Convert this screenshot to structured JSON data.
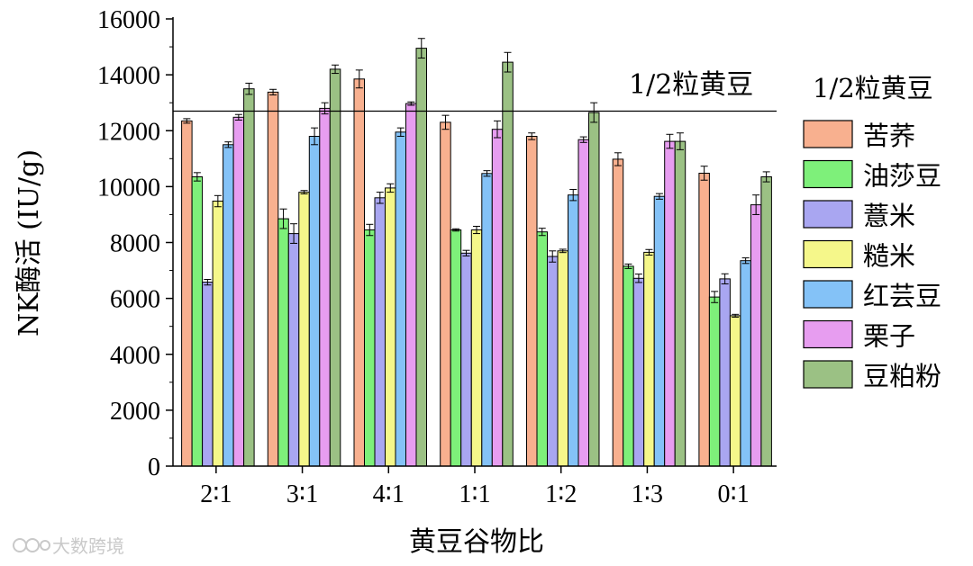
{
  "chart_data": {
    "type": "bar",
    "xlabel": "黄豆谷物比",
    "ylabel": "NK酶活 (IU/g)",
    "ylim": [
      0,
      16000
    ],
    "yticks": [
      0,
      2000,
      4000,
      6000,
      8000,
      10000,
      12000,
      14000,
      16000
    ],
    "categories": [
      "2∶1",
      "3∶1",
      "4∶1",
      "1∶1",
      "1∶2",
      "1∶3",
      "0∶1"
    ],
    "legend_title": "1/2粒黄豆",
    "legend_position": "right",
    "reference_line": {
      "value": 12700,
      "label": "1/2粒黄豆"
    },
    "series": [
      {
        "name": "苦荞",
        "color": "#f8b08f",
        "values": [
          12350,
          13380,
          13850,
          12300,
          11800,
          10980,
          10480
        ],
        "errors": [
          80,
          100,
          320,
          250,
          120,
          230,
          250
        ]
      },
      {
        "name": "油莎豆",
        "color": "#7ef07a",
        "values": [
          10350,
          8850,
          8450,
          8450,
          8380,
          7150,
          6050
        ],
        "errors": [
          150,
          350,
          200,
          40,
          130,
          80,
          200
        ]
      },
      {
        "name": "薏米",
        "color": "#a9a6f1",
        "values": [
          6580,
          8320,
          9600,
          7620,
          7500,
          6720,
          6700
        ],
        "errors": [
          100,
          350,
          200,
          100,
          200,
          150,
          180
        ]
      },
      {
        "name": "糙米",
        "color": "#f5f78a",
        "values": [
          9480,
          9800,
          9950,
          8450,
          7700,
          7650,
          5380
        ],
        "errors": [
          200,
          60,
          150,
          130,
          60,
          100,
          50
        ]
      },
      {
        "name": "红芸豆",
        "color": "#84c2f7",
        "values": [
          11500,
          11800,
          11950,
          10470,
          9700,
          9650,
          7350
        ],
        "errors": [
          100,
          300,
          150,
          100,
          200,
          100,
          100
        ]
      },
      {
        "name": "栗子",
        "color": "#e79df0",
        "values": [
          12480,
          12800,
          12970,
          12050,
          11680,
          11620,
          9350
        ],
        "errors": [
          100,
          200,
          60,
          300,
          100,
          250,
          350
        ]
      },
      {
        "name": "豆粕粉",
        "color": "#9bc184",
        "values": [
          13500,
          14200,
          14950,
          14450,
          12650,
          11620,
          10350
        ],
        "errors": [
          200,
          150,
          350,
          350,
          350,
          300,
          180
        ]
      }
    ]
  },
  "watermark": {
    "text": "大数跨境",
    "icon": "watermark-logo-icon"
  }
}
